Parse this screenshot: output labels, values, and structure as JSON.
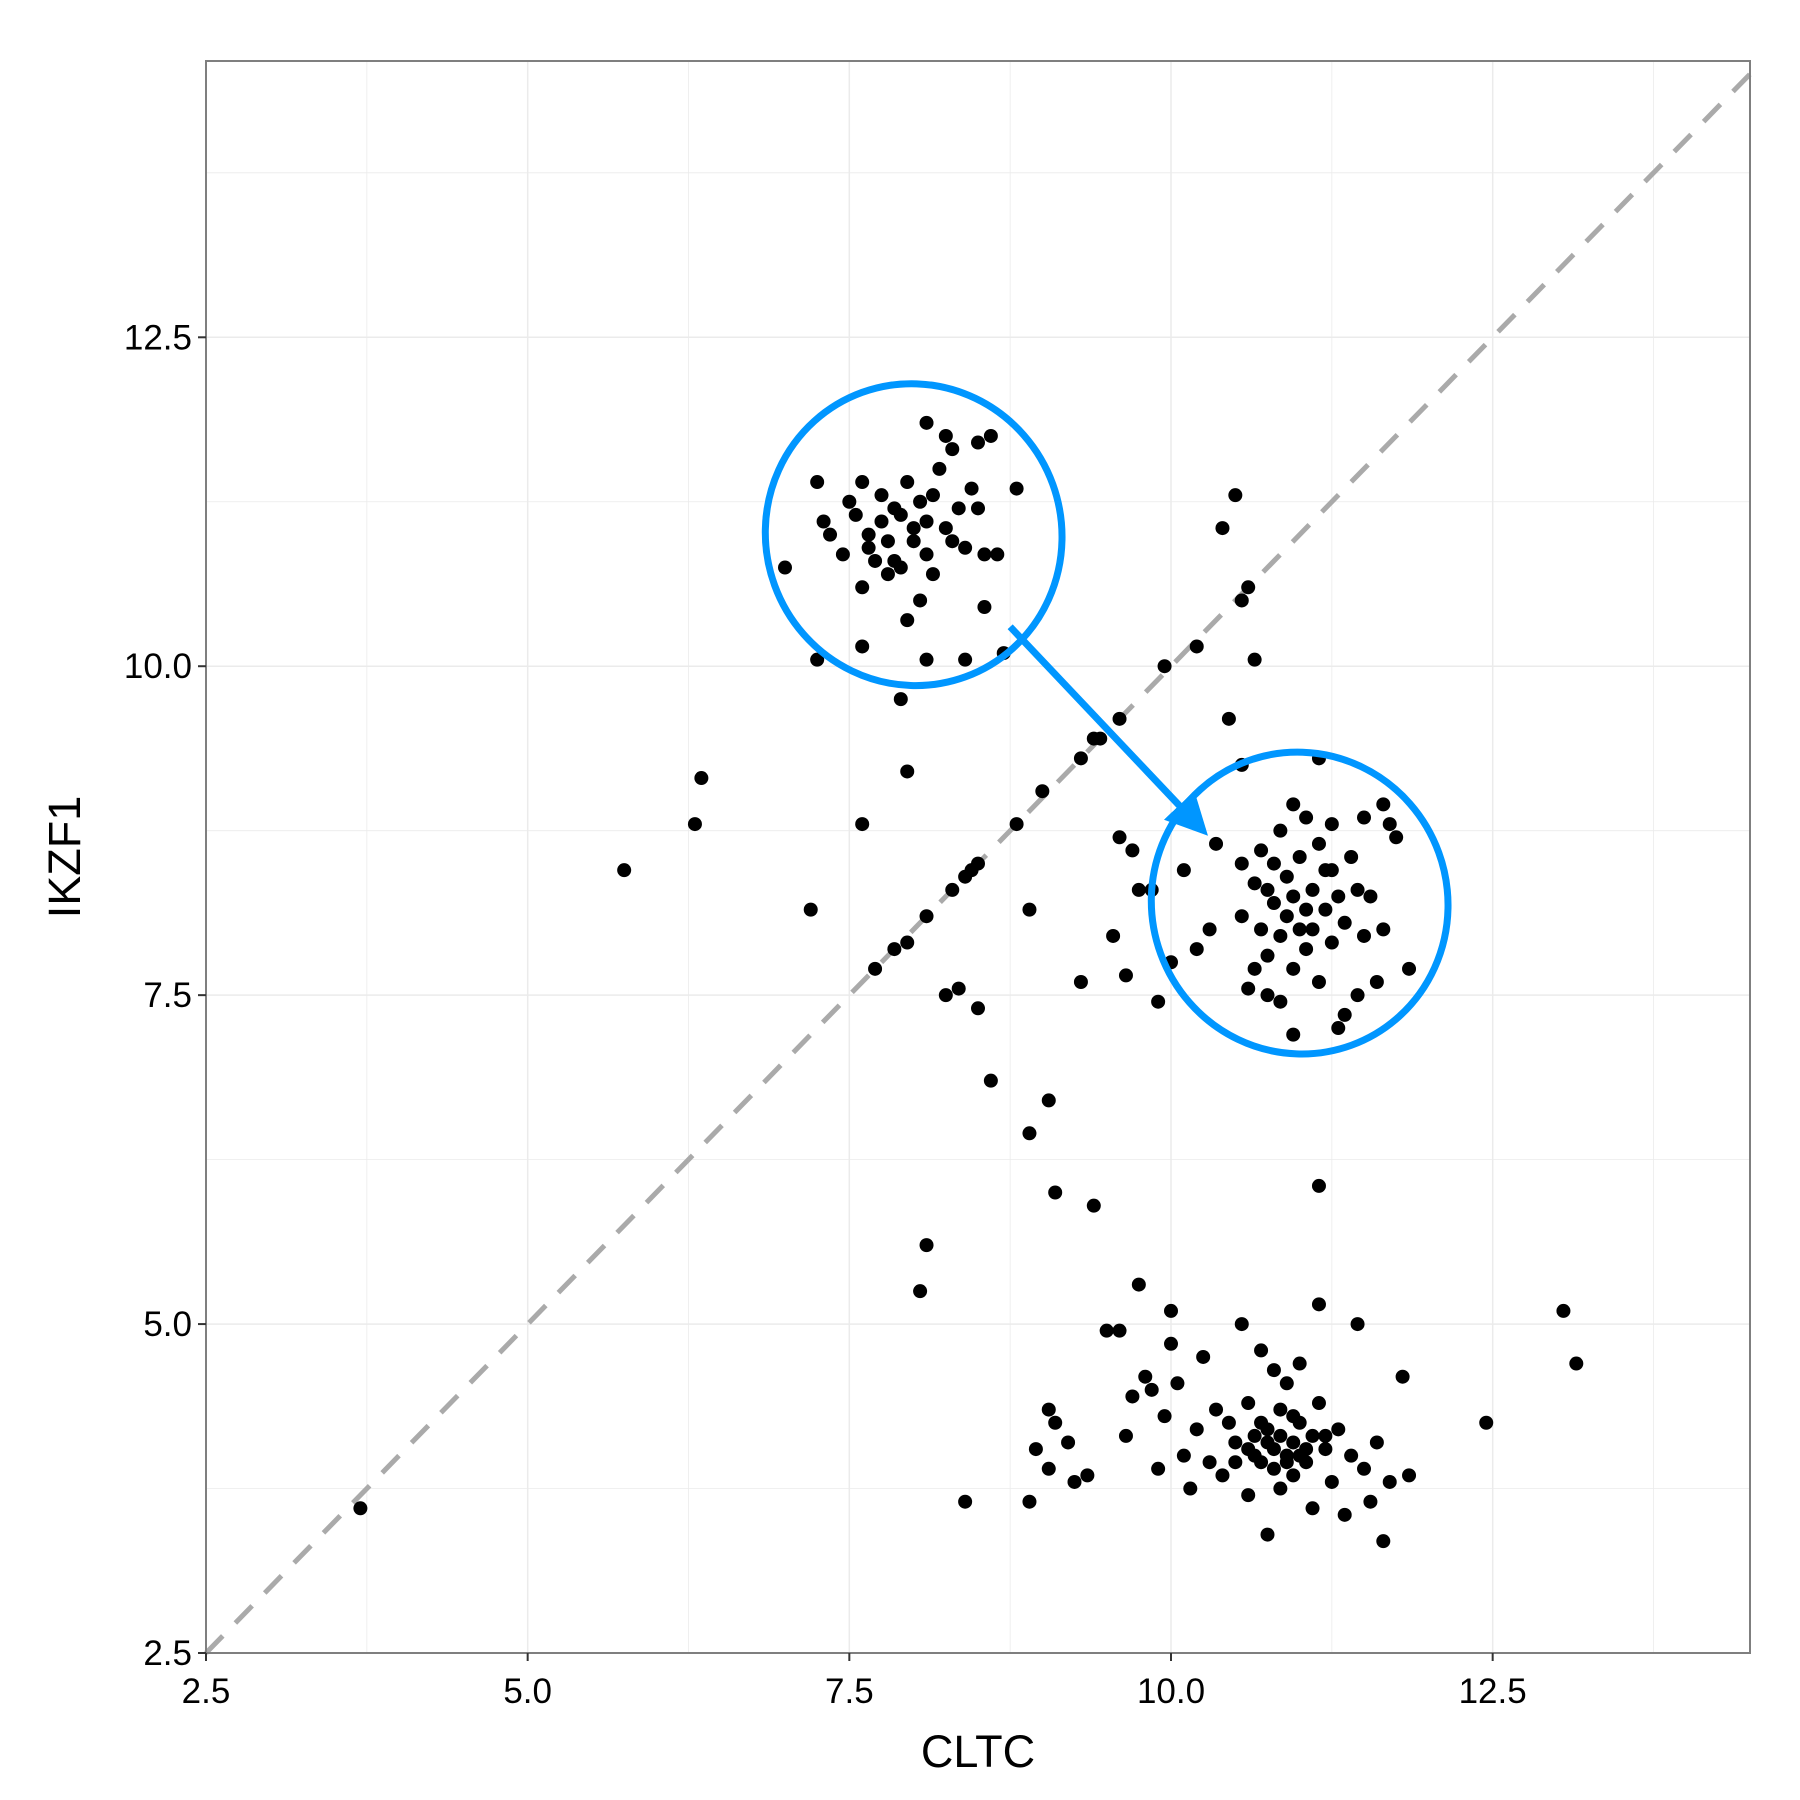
{
  "chart_data": {
    "type": "scatter",
    "title": "",
    "xlabel": "CLTC",
    "ylabel": "IKZF1",
    "xlim": [
      2.5,
      14.5
    ],
    "ylim": [
      2.5,
      14.6
    ],
    "x_ticks": [
      2.5,
      5.0,
      7.5,
      10.0,
      12.5
    ],
    "x_tick_labels": [
      "2.5",
      "5.0",
      "7.5",
      "10.0",
      "12.5"
    ],
    "y_ticks": [
      2.5,
      5.0,
      7.5,
      10.0,
      12.5
    ],
    "y_tick_labels": [
      "2.5",
      "5.0",
      "7.5",
      "10.0",
      "12.5"
    ],
    "grid": true,
    "legend": "none",
    "reference_line": {
      "slope": 1,
      "intercept": 0,
      "style": "dashed",
      "color": "#aaaaaa"
    },
    "colors": {
      "points": "#000000",
      "annotation": "#0096ff",
      "grid": "#ebebeb",
      "border": "#7f7f7f"
    },
    "annotations": [
      {
        "type": "ellipse",
        "cx": 8.0,
        "cy": 11.0,
        "rx": 1.15,
        "ry": 1.15
      },
      {
        "type": "ellipse",
        "cx": 11.0,
        "cy": 8.2,
        "rx": 1.15,
        "ry": 1.15
      },
      {
        "type": "arrow",
        "from": [
          8.75,
          10.3
        ],
        "to": [
          10.25,
          8.75
        ]
      }
    ],
    "series": [
      {
        "points": [
          [
            3.7,
            3.6
          ],
          [
            5.75,
            8.45
          ],
          [
            6.3,
            8.8
          ],
          [
            6.35,
            9.15
          ],
          [
            7.0,
            10.75
          ],
          [
            7.2,
            8.15
          ],
          [
            7.25,
            11.4
          ],
          [
            7.3,
            11.1
          ],
          [
            7.35,
            11.0
          ],
          [
            7.45,
            10.85
          ],
          [
            7.5,
            11.25
          ],
          [
            7.55,
            11.15
          ],
          [
            7.6,
            11.4
          ],
          [
            7.6,
            10.6
          ],
          [
            7.6,
            10.15
          ],
          [
            7.65,
            11.0
          ],
          [
            7.65,
            10.9
          ],
          [
            7.7,
            10.8
          ],
          [
            7.75,
            11.3
          ],
          [
            7.75,
            11.1
          ],
          [
            7.8,
            10.95
          ],
          [
            7.8,
            10.7
          ],
          [
            7.85,
            11.2
          ],
          [
            7.85,
            10.8
          ],
          [
            7.9,
            11.15
          ],
          [
            7.9,
            10.75
          ],
          [
            7.95,
            11.4
          ],
          [
            7.95,
            10.35
          ],
          [
            8.0,
            11.05
          ],
          [
            8.0,
            10.95
          ],
          [
            8.05,
            11.25
          ],
          [
            8.05,
            10.5
          ],
          [
            8.1,
            11.85
          ],
          [
            8.1,
            11.1
          ],
          [
            8.1,
            10.85
          ],
          [
            8.15,
            11.3
          ],
          [
            8.15,
            10.7
          ],
          [
            8.2,
            11.5
          ],
          [
            8.25,
            11.75
          ],
          [
            8.25,
            11.05
          ],
          [
            8.3,
            11.65
          ],
          [
            8.3,
            10.95
          ],
          [
            8.35,
            11.2
          ],
          [
            8.4,
            10.9
          ],
          [
            8.45,
            11.35
          ],
          [
            8.5,
            11.7
          ],
          [
            8.5,
            11.2
          ],
          [
            8.55,
            10.85
          ],
          [
            8.55,
            10.45
          ],
          [
            8.6,
            11.75
          ],
          [
            8.65,
            10.85
          ],
          [
            8.8,
            11.35
          ],
          [
            8.7,
            10.1
          ],
          [
            8.4,
            10.05
          ],
          [
            7.25,
            10.05
          ],
          [
            7.9,
            9.75
          ],
          [
            8.1,
            10.05
          ],
          [
            7.95,
            9.2
          ],
          [
            7.6,
            8.8
          ],
          [
            7.7,
            7.7
          ],
          [
            7.85,
            7.85
          ],
          [
            7.95,
            7.9
          ],
          [
            8.1,
            8.1
          ],
          [
            8.25,
            7.5
          ],
          [
            8.3,
            8.3
          ],
          [
            8.35,
            7.55
          ],
          [
            8.4,
            8.4
          ],
          [
            8.45,
            8.45
          ],
          [
            8.5,
            8.5
          ],
          [
            8.5,
            7.4
          ],
          [
            8.6,
            6.85
          ],
          [
            8.8,
            8.8
          ],
          [
            8.9,
            8.15
          ],
          [
            8.9,
            6.45
          ],
          [
            9.0,
            9.05
          ],
          [
            9.05,
            6.7
          ],
          [
            9.1,
            6.0
          ],
          [
            9.3,
            9.3
          ],
          [
            9.3,
            7.6
          ],
          [
            9.4,
            9.45
          ],
          [
            9.45,
            9.45
          ],
          [
            9.4,
            5.9
          ],
          [
            9.55,
            7.95
          ],
          [
            9.6,
            9.6
          ],
          [
            9.6,
            8.7
          ],
          [
            9.65,
            7.65
          ],
          [
            9.7,
            8.6
          ],
          [
            9.75,
            8.3
          ],
          [
            9.85,
            8.3
          ],
          [
            9.9,
            7.45
          ],
          [
            9.95,
            10.0
          ],
          [
            10.0,
            7.75
          ],
          [
            10.1,
            8.45
          ],
          [
            10.2,
            7.85
          ],
          [
            10.2,
            10.15
          ],
          [
            10.3,
            8.0
          ],
          [
            10.35,
            8.65
          ],
          [
            10.4,
            11.05
          ],
          [
            10.45,
            9.6
          ],
          [
            10.5,
            11.3
          ],
          [
            10.55,
            10.5
          ],
          [
            10.55,
            9.25
          ],
          [
            10.6,
            10.6
          ],
          [
            10.65,
            10.05
          ],
          [
            8.1,
            5.6
          ],
          [
            8.05,
            5.25
          ],
          [
            8.4,
            3.65
          ],
          [
            8.9,
            3.65
          ],
          [
            8.95,
            4.05
          ],
          [
            9.05,
            4.35
          ],
          [
            9.1,
            4.25
          ],
          [
            9.05,
            3.9
          ],
          [
            9.2,
            4.1
          ],
          [
            9.25,
            3.8
          ],
          [
            9.35,
            3.85
          ],
          [
            9.5,
            4.95
          ],
          [
            9.6,
            4.95
          ],
          [
            9.65,
            4.15
          ],
          [
            9.7,
            4.45
          ],
          [
            9.75,
            5.3
          ],
          [
            9.8,
            4.6
          ],
          [
            9.85,
            4.5
          ],
          [
            9.9,
            3.9
          ],
          [
            9.95,
            4.3
          ],
          [
            10.0,
            4.85
          ],
          [
            10.0,
            5.1
          ],
          [
            10.05,
            4.55
          ],
          [
            10.1,
            4.0
          ],
          [
            10.15,
            3.75
          ],
          [
            10.2,
            4.2
          ],
          [
            10.25,
            4.75
          ],
          [
            10.3,
            3.95
          ],
          [
            10.35,
            4.35
          ],
          [
            10.4,
            3.85
          ],
          [
            10.45,
            4.25
          ],
          [
            10.5,
            4.1
          ],
          [
            10.55,
            5.0
          ],
          [
            10.6,
            3.7
          ],
          [
            10.6,
            4.4
          ],
          [
            10.65,
            4.15
          ],
          [
            10.7,
            3.95
          ],
          [
            10.7,
            4.8
          ],
          [
            10.75,
            4.2
          ],
          [
            10.8,
            4.05
          ],
          [
            10.8,
            4.65
          ],
          [
            10.85,
            3.75
          ],
          [
            10.85,
            4.35
          ],
          [
            10.9,
            4.0
          ],
          [
            10.9,
            4.55
          ],
          [
            10.95,
            4.1
          ],
          [
            10.95,
            3.85
          ],
          [
            11.0,
            4.25
          ],
          [
            11.0,
            4.7
          ],
          [
            11.05,
            3.95
          ],
          [
            11.1,
            4.15
          ],
          [
            11.1,
            3.6
          ],
          [
            11.15,
            4.4
          ],
          [
            11.15,
            5.15
          ],
          [
            11.2,
            4.05
          ],
          [
            11.25,
            3.8
          ],
          [
            11.3,
            4.2
          ],
          [
            11.35,
            3.55
          ],
          [
            11.4,
            4.0
          ],
          [
            11.45,
            5.0
          ],
          [
            11.5,
            3.9
          ],
          [
            11.55,
            3.65
          ],
          [
            11.6,
            4.1
          ],
          [
            11.65,
            3.35
          ],
          [
            11.7,
            3.8
          ],
          [
            11.8,
            4.6
          ],
          [
            11.85,
            3.85
          ],
          [
            12.45,
            4.25
          ],
          [
            13.05,
            5.1
          ],
          [
            13.15,
            4.7
          ],
          [
            10.75,
            3.4
          ],
          [
            11.15,
            6.05
          ],
          [
            10.65,
            4.0
          ],
          [
            10.75,
            4.1
          ],
          [
            10.85,
            4.15
          ],
          [
            10.7,
            4.25
          ],
          [
            10.95,
            4.3
          ],
          [
            11.05,
            4.05
          ],
          [
            10.6,
            4.05
          ],
          [
            10.8,
            3.9
          ],
          [
            10.9,
            3.95
          ],
          [
            11.0,
            4.0
          ],
          [
            10.5,
            3.95
          ],
          [
            11.2,
            4.15
          ],
          [
            10.55,
            8.1
          ],
          [
            10.6,
            7.55
          ],
          [
            10.65,
            8.35
          ],
          [
            10.7,
            8.0
          ],
          [
            10.7,
            8.6
          ],
          [
            10.75,
            7.8
          ],
          [
            10.8,
            8.2
          ],
          [
            10.8,
            8.5
          ],
          [
            10.85,
            7.95
          ],
          [
            10.85,
            8.75
          ],
          [
            10.9,
            8.1
          ],
          [
            10.9,
            8.4
          ],
          [
            10.95,
            7.7
          ],
          [
            10.95,
            8.25
          ],
          [
            11.0,
            8.0
          ],
          [
            11.0,
            8.55
          ],
          [
            11.05,
            8.85
          ],
          [
            11.05,
            7.85
          ],
          [
            11.1,
            8.3
          ],
          [
            11.1,
            8.0
          ],
          [
            11.15,
            8.65
          ],
          [
            11.15,
            7.6
          ],
          [
            11.2,
            8.15
          ],
          [
            11.2,
            8.45
          ],
          [
            11.25,
            7.9
          ],
          [
            11.25,
            8.8
          ],
          [
            11.3,
            8.25
          ],
          [
            11.35,
            8.05
          ],
          [
            11.35,
            7.35
          ],
          [
            11.4,
            8.55
          ],
          [
            11.45,
            8.3
          ],
          [
            11.5,
            7.95
          ],
          [
            11.5,
            8.85
          ],
          [
            11.55,
            8.25
          ],
          [
            11.6,
            7.6
          ],
          [
            11.65,
            8.95
          ],
          [
            11.65,
            8.0
          ],
          [
            11.7,
            8.8
          ],
          [
            11.75,
            8.7
          ],
          [
            11.85,
            7.7
          ],
          [
            10.75,
            7.5
          ],
          [
            10.85,
            7.45
          ],
          [
            10.95,
            7.2
          ],
          [
            11.3,
            7.25
          ],
          [
            11.45,
            7.5
          ],
          [
            11.15,
            9.3
          ],
          [
            10.55,
            8.5
          ],
          [
            10.65,
            7.7
          ],
          [
            10.75,
            8.3
          ],
          [
            10.95,
            8.95
          ],
          [
            11.05,
            8.15
          ],
          [
            11.25,
            8.45
          ]
        ]
      }
    ]
  }
}
